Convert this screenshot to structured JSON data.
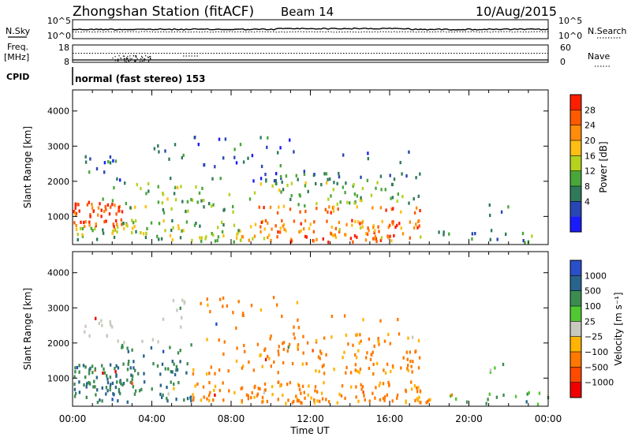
{
  "header": {
    "station_title": "Zhongshan Station (fitACF)",
    "beam_label": "Beam 14",
    "date_label": "10/Aug/2015"
  },
  "noise_panel": {
    "left_label": "N.Sky",
    "left_tick_top": "10^5",
    "left_tick_bottom": "10^0",
    "right_tick_top": "10^5",
    "right_tick_bottom": "10^0",
    "right_label": "N.Search"
  },
  "freq_panel": {
    "left_label_line1": "Freq.",
    "left_label_line2": "[MHz]",
    "left_tick_top": "18",
    "left_tick_bottom": "8",
    "right_tick_top": "60",
    "right_tick_bottom": "0",
    "right_label": "Nave"
  },
  "cpid_panel": {
    "label": "CPID",
    "text": "normal (fast stereo) 153"
  },
  "chart_data": [
    {
      "type": "heatmap",
      "name": "power",
      "ylabel": "Slant Range [km]",
      "yticks": [
        "1000",
        "2000",
        "3000",
        "4000"
      ],
      "ylim": [
        200,
        4600
      ],
      "xlim_hours": [
        0,
        24
      ],
      "colorbar": {
        "label": "Power [dB]",
        "ticks": [
          "4",
          "8",
          "12",
          "16",
          "20",
          "24",
          "28"
        ],
        "colors": [
          "#1a1aff",
          "#2846b4",
          "#2f7a5a",
          "#49a63a",
          "#b4d21e",
          "#ffbe14",
          "#ff8c0a",
          "#ff5a00",
          "#ff1e00"
        ]
      }
    },
    {
      "type": "heatmap",
      "name": "velocity",
      "ylabel": "Slant Range [km]",
      "yticks": [
        "1000",
        "2000",
        "3000",
        "4000"
      ],
      "ylim": [
        200,
        4600
      ],
      "xlim_hours": [
        0,
        24
      ],
      "colorbar": {
        "label": "Velocity [m s⁻¹]",
        "ticks": [
          "1000",
          "500",
          "100",
          "25",
          "−25",
          "−100",
          "−500",
          "−1000"
        ],
        "colors": [
          "#2850c8",
          "#28648c",
          "#3c8c50",
          "#50c832",
          "#c8c8be",
          "#ffb400",
          "#ff7800",
          "#ff4a00",
          "#f00000"
        ]
      }
    }
  ],
  "xaxis": {
    "ticks": [
      "00:00",
      "04:00",
      "08:00",
      "12:00",
      "16:00",
      "20:00",
      "00:00"
    ],
    "label": "Time UT"
  }
}
